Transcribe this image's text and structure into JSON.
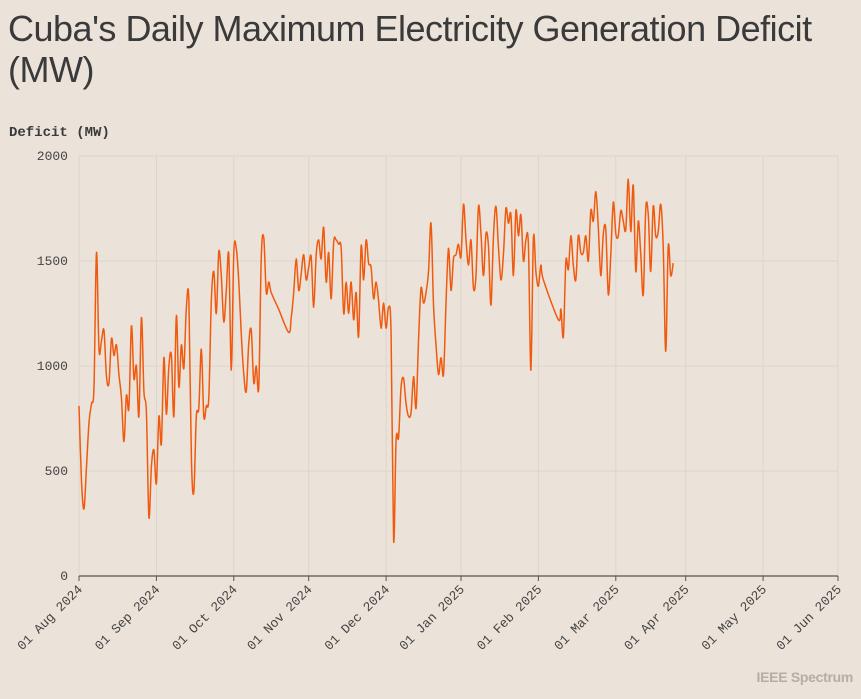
{
  "title": "Cuba's Daily Maximum Electricity Generation Deficit (MW)",
  "brand": "IEEE Spectrum",
  "chart_data": {
    "type": "line",
    "title": "Cuba's Daily Maximum Electricity Generation Deficit (MW)",
    "ylabel": "Deficit (MW)",
    "xlabel": "",
    "ylim": [
      0,
      2000
    ],
    "yticks": [
      "0",
      "500",
      "1000",
      "1500",
      "2000"
    ],
    "xticks": [
      "01 Aug 2024",
      "01 Sep 2024",
      "01 Oct 2024",
      "01 Nov 2024",
      "01 Dec 2024",
      "01 Jan 2025",
      "01 Feb 2025",
      "01 Mar 2025",
      "01 Apr 2025",
      "01 May 2025",
      "01 Jun 2025"
    ],
    "line_color": "#f05a0f",
    "series": [
      {
        "name": "Deficit (MW)",
        "points": [
          [
            0,
            810
          ],
          [
            1,
            450
          ],
          [
            2,
            320
          ],
          [
            3,
            520
          ],
          [
            4,
            730
          ],
          [
            5,
            820
          ],
          [
            6,
            900
          ],
          [
            7,
            1540
          ],
          [
            8,
            1080
          ],
          [
            9,
            1120
          ],
          [
            10,
            1170
          ],
          [
            11,
            950
          ],
          [
            12,
            920
          ],
          [
            13,
            1130
          ],
          [
            14,
            1050
          ],
          [
            15,
            1100
          ],
          [
            16,
            960
          ],
          [
            17,
            850
          ],
          [
            18,
            640
          ],
          [
            19,
            860
          ],
          [
            20,
            800
          ],
          [
            21,
            1190
          ],
          [
            22,
            940
          ],
          [
            23,
            1000
          ],
          [
            24,
            760
          ],
          [
            25,
            1230
          ],
          [
            26,
            880
          ],
          [
            27,
            780
          ],
          [
            28,
            280
          ],
          [
            29,
            520
          ],
          [
            30,
            600
          ],
          [
            31,
            440
          ],
          [
            32,
            760
          ],
          [
            33,
            630
          ],
          [
            34,
            1040
          ],
          [
            35,
            770
          ],
          [
            36,
            1000
          ],
          [
            37,
            1050
          ],
          [
            38,
            760
          ],
          [
            39,
            1240
          ],
          [
            40,
            900
          ],
          [
            41,
            1100
          ],
          [
            42,
            990
          ],
          [
            43,
            1280
          ],
          [
            44,
            1310
          ],
          [
            45,
            560
          ],
          [
            46,
            400
          ],
          [
            47,
            760
          ],
          [
            48,
            800
          ],
          [
            49,
            1080
          ],
          [
            50,
            760
          ],
          [
            51,
            810
          ],
          [
            52,
            850
          ],
          [
            53,
            1310
          ],
          [
            54,
            1450
          ],
          [
            55,
            1250
          ],
          [
            56,
            1545
          ],
          [
            57,
            1430
          ],
          [
            58,
            1210
          ],
          [
            59,
            1360
          ],
          [
            60,
            1530
          ],
          [
            61,
            980
          ],
          [
            62,
            1540
          ],
          [
            63,
            1560
          ],
          [
            64,
            1400
          ],
          [
            65,
            1150
          ],
          [
            66,
            960
          ],
          [
            67,
            880
          ],
          [
            68,
            1110
          ],
          [
            69,
            1170
          ],
          [
            70,
            920
          ],
          [
            71,
            1000
          ],
          [
            72,
            900
          ],
          [
            73,
            1520
          ],
          [
            74,
            1610
          ],
          [
            75,
            1350
          ],
          [
            76,
            1400
          ],
          [
            77,
            1350
          ],
          [
            80,
            1270
          ],
          [
            84,
            1160
          ],
          [
            85,
            1230
          ],
          [
            86,
            1350
          ],
          [
            87,
            1510
          ],
          [
            88,
            1360
          ],
          [
            89,
            1440
          ],
          [
            90,
            1530
          ],
          [
            91,
            1410
          ],
          [
            92,
            1470
          ],
          [
            93,
            1520
          ],
          [
            94,
            1280
          ],
          [
            95,
            1530
          ],
          [
            96,
            1600
          ],
          [
            97,
            1510
          ],
          [
            98,
            1660
          ],
          [
            99,
            1400
          ],
          [
            100,
            1540
          ],
          [
            101,
            1320
          ],
          [
            102,
            1590
          ],
          [
            103,
            1600
          ],
          [
            104,
            1580
          ],
          [
            105,
            1560
          ],
          [
            106,
            1250
          ],
          [
            107,
            1400
          ],
          [
            108,
            1250
          ],
          [
            109,
            1400
          ],
          [
            110,
            1220
          ],
          [
            111,
            1350
          ],
          [
            112,
            1140
          ],
          [
            113,
            1570
          ],
          [
            114,
            1410
          ],
          [
            115,
            1600
          ],
          [
            116,
            1490
          ],
          [
            117,
            1470
          ],
          [
            118,
            1320
          ],
          [
            119,
            1400
          ],
          [
            120,
            1310
          ],
          [
            121,
            1180
          ],
          [
            122,
            1300
          ],
          [
            123,
            1180
          ],
          [
            124,
            1280
          ],
          [
            125,
            1150
          ],
          [
            126,
            170
          ],
          [
            127,
            650
          ],
          [
            128,
            660
          ],
          [
            129,
            900
          ],
          [
            130,
            940
          ],
          [
            131,
            820
          ],
          [
            132,
            760
          ],
          [
            133,
            780
          ],
          [
            134,
            950
          ],
          [
            135,
            800
          ],
          [
            136,
            1130
          ],
          [
            137,
            1370
          ],
          [
            138,
            1300
          ],
          [
            139,
            1350
          ],
          [
            140,
            1450
          ],
          [
            141,
            1680
          ],
          [
            142,
            1290
          ],
          [
            143,
            1100
          ],
          [
            144,
            960
          ],
          [
            145,
            1040
          ],
          [
            146,
            960
          ],
          [
            147,
            1300
          ],
          [
            148,
            1560
          ],
          [
            149,
            1360
          ],
          [
            150,
            1510
          ],
          [
            151,
            1530
          ],
          [
            152,
            1580
          ],
          [
            153,
            1520
          ],
          [
            154,
            1770
          ],
          [
            155,
            1600
          ],
          [
            156,
            1480
          ],
          [
            157,
            1600
          ],
          [
            158,
            1370
          ],
          [
            159,
            1430
          ],
          [
            160,
            1760
          ],
          [
            161,
            1630
          ],
          [
            162,
            1430
          ],
          [
            163,
            1630
          ],
          [
            164,
            1570
          ],
          [
            165,
            1290
          ],
          [
            166,
            1620
          ],
          [
            167,
            1760
          ],
          [
            168,
            1570
          ],
          [
            169,
            1410
          ],
          [
            170,
            1530
          ],
          [
            171,
            1750
          ],
          [
            172,
            1680
          ],
          [
            173,
            1720
          ],
          [
            174,
            1430
          ],
          [
            175,
            1740
          ],
          [
            176,
            1620
          ],
          [
            177,
            1720
          ],
          [
            178,
            1500
          ],
          [
            179,
            1600
          ],
          [
            180,
            1580
          ],
          [
            181,
            980
          ],
          [
            182,
            1610
          ],
          [
            183,
            1450
          ],
          [
            184,
            1380
          ],
          [
            185,
            1480
          ],
          [
            186,
            1410
          ],
          [
            192,
            1220
          ],
          [
            193,
            1270
          ],
          [
            194,
            1140
          ],
          [
            195,
            1500
          ],
          [
            196,
            1460
          ],
          [
            197,
            1620
          ],
          [
            198,
            1480
          ],
          [
            199,
            1410
          ],
          [
            200,
            1620
          ],
          [
            201,
            1540
          ],
          [
            202,
            1540
          ],
          [
            203,
            1620
          ],
          [
            204,
            1500
          ],
          [
            205,
            1740
          ],
          [
            206,
            1690
          ],
          [
            207,
            1830
          ],
          [
            208,
            1660
          ],
          [
            209,
            1430
          ],
          [
            210,
            1630
          ],
          [
            211,
            1650
          ],
          [
            212,
            1340
          ],
          [
            213,
            1530
          ],
          [
            214,
            1780
          ],
          [
            215,
            1630
          ],
          [
            216,
            1620
          ],
          [
            217,
            1740
          ],
          [
            218,
            1690
          ],
          [
            219,
            1650
          ],
          [
            220,
            1890
          ],
          [
            221,
            1640
          ],
          [
            222,
            1860
          ],
          [
            223,
            1450
          ],
          [
            224,
            1690
          ],
          [
            225,
            1530
          ],
          [
            226,
            1340
          ],
          [
            227,
            1750
          ],
          [
            228,
            1720
          ],
          [
            229,
            1450
          ],
          [
            230,
            1760
          ],
          [
            231,
            1620
          ],
          [
            232,
            1640
          ],
          [
            233,
            1770
          ],
          [
            234,
            1570
          ],
          [
            235,
            1070
          ],
          [
            236,
            1570
          ],
          [
            237,
            1430
          ],
          [
            238,
            1490
          ]
        ]
      }
    ]
  }
}
